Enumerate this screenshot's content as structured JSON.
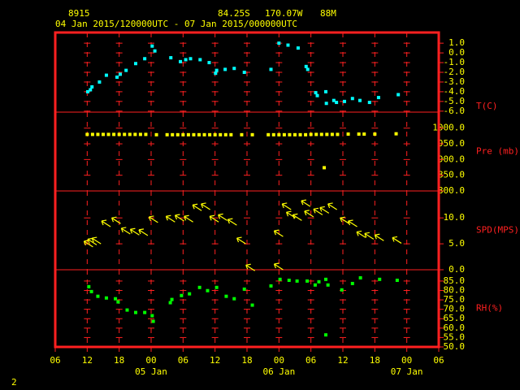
{
  "header": {
    "station": "8915",
    "lat": "84.25S",
    "lon": "170.07W",
    "elev": "88M",
    "period": "04 Jan 2015/120000UTC - 07 Jan 2015/000000UTC",
    "page": "2"
  },
  "chart_data": [
    {
      "type": "scatter",
      "label": "T(C)",
      "color": "#00ffff",
      "x": [
        6.1,
        6.6,
        6.9,
        8.3,
        9.6,
        11.6,
        12.2,
        13.3,
        15.1,
        16.8,
        18.2,
        18.7,
        21.7,
        23.5,
        24.5,
        25.4,
        27.2,
        28.9,
        30.1,
        30.3,
        31.9,
        33.6,
        35.5,
        40.5,
        42.0,
        43.7,
        45.6,
        47.1,
        47.4,
        48.9,
        49.2,
        50.8,
        50.9,
        52.3,
        52.8,
        54.3,
        55.8,
        57.2,
        59.0,
        60.7,
        64.4
      ],
      "values": [
        -4.0,
        -3.8,
        -3.5,
        -3.0,
        -2.3,
        -2.5,
        -2.2,
        -1.8,
        -1.1,
        -0.6,
        0.7,
        0.2,
        -0.5,
        -0.9,
        -0.7,
        -0.6,
        -0.7,
        -1.0,
        -2.1,
        -1.8,
        -1.7,
        -1.6,
        -2.0,
        -1.7,
        1.0,
        0.8,
        0.5,
        -1.4,
        -1.7,
        -4.1,
        -4.4,
        -4.0,
        -5.2,
        -4.9,
        -5.1,
        -5.0,
        -4.7,
        -4.9,
        -5.1,
        -4.6,
        -4.3
      ],
      "ylim": [
        -6.1,
        2.1
      ],
      "yticks": [
        {
          "value": 1,
          "label": "1.0"
        },
        {
          "value": 0,
          "label": "0.0"
        },
        {
          "value": -1,
          "label": "-1.0"
        },
        {
          "value": -2,
          "label": "-2.0"
        },
        {
          "value": -3,
          "label": "-3.0"
        },
        {
          "value": -4,
          "label": "-4.0"
        },
        {
          "value": -5,
          "label": "-5.0"
        },
        {
          "value": -6,
          "label": "-6.0"
        }
      ]
    },
    {
      "type": "scatter",
      "label": "Pre (mb)",
      "color": "#ffff00",
      "x": [
        6,
        7,
        8,
        9,
        10,
        11,
        12,
        13,
        14,
        15,
        16,
        17,
        19,
        21,
        22,
        23,
        24,
        25,
        26,
        27,
        28,
        29,
        30,
        31,
        32,
        33,
        35,
        37,
        40,
        41,
        42,
        43,
        44,
        45,
        46,
        47,
        48,
        49,
        50,
        50.5,
        51,
        52,
        53,
        55,
        57,
        58,
        60,
        64
      ],
      "values": [
        980,
        980,
        980,
        980,
        980,
        980,
        980,
        980,
        980,
        980,
        980,
        980,
        979,
        979,
        979,
        979,
        979,
        979,
        979,
        979,
        979,
        979,
        979,
        979,
        979,
        979,
        979,
        979,
        979,
        979,
        979,
        979,
        979,
        979,
        979,
        979,
        980,
        980,
        980,
        874,
        980,
        980,
        980,
        981,
        981,
        981,
        981,
        982
      ],
      "ylim": [
        800,
        1051
      ],
      "yticks": [
        {
          "value": 1000,
          "label": "1000.0"
        },
        {
          "value": 950,
          "label": "950.0"
        },
        {
          "value": 900,
          "label": "900.0"
        },
        {
          "value": 850,
          "label": "850.0"
        },
        {
          "value": 800,
          "label": "800.0"
        }
      ]
    },
    {
      "type": "wind",
      "label": "SPD(MPS)",
      "color": "#ffff00",
      "x": [
        5.4,
        6.1,
        6.9,
        8.7,
        10.6,
        12.4,
        14.1,
        15.7,
        17.6,
        20.8,
        22.5,
        24.2,
        25.8,
        27.4,
        29.0,
        30.6,
        32.4,
        34.1,
        35.8,
        41.1,
        41.1,
        42.6,
        43.4,
        44.6,
        46.2,
        46.8,
        48.5,
        49.7,
        51.2,
        53.5,
        55.0,
        56.6,
        58.1,
        60.0,
        63.3
      ],
      "values": [
        5.5,
        5.9,
        6.1,
        9.4,
        10.0,
        8.0,
        7.8,
        7.7,
        10.2,
        10.3,
        10.5,
        10.3,
        12.5,
        12.7,
        10.3,
        10.6,
        9.7,
        6.1,
        0.9,
        1.1,
        7.5,
        12.7,
        11.1,
        10.6,
        13.3,
        11.3,
        11.7,
        12.0,
        12.7,
        10.0,
        9.4,
        7.3,
        7.0,
        6.7,
        6.2
      ],
      "ylim": [
        0,
        15.2
      ],
      "yticks": [
        {
          "value": 10,
          "label": "10.0"
        },
        {
          "value": 5,
          "label": "5.0"
        },
        {
          "value": 0,
          "label": "0.0"
        }
      ]
    },
    {
      "type": "scatter",
      "label": "RH(%)",
      "color": "#00ff00",
      "x": [
        6.3,
        6.8,
        8.0,
        9.6,
        11.3,
        11.8,
        13.5,
        15.1,
        16.8,
        18.2,
        18.4,
        21.6,
        21.9,
        23.7,
        25.2,
        27.1,
        28.6,
        30.3,
        32.1,
        33.6,
        35.5,
        37.0,
        40.5,
        42.2,
        43.9,
        45.4,
        47.3,
        48.8,
        49.5,
        50.8,
        50.8,
        51.2,
        53.8,
        55.8,
        57.3,
        60.9,
        64.2
      ],
      "values": [
        82.0,
        79.4,
        76.9,
        76.0,
        75.6,
        73.9,
        69.6,
        68.3,
        68.3,
        66.6,
        63.6,
        73.5,
        75.2,
        77.3,
        78.2,
        81.6,
        79.9,
        81.6,
        76.9,
        75.6,
        80.7,
        72.2,
        82.4,
        85.9,
        85.4,
        85.0,
        85.0,
        82.9,
        84.6,
        85.9,
        56.4,
        82.9,
        80.3,
        83.7,
        86.7,
        85.9,
        85.4
      ],
      "ylim": [
        50,
        91
      ],
      "yticks": [
        {
          "value": 85,
          "label": "85.0"
        },
        {
          "value": 80,
          "label": "80.0"
        },
        {
          "value": 75,
          "label": "75.0"
        },
        {
          "value": 70,
          "label": "70.0"
        },
        {
          "value": 65,
          "label": "65.0"
        },
        {
          "value": 60,
          "label": "60.0"
        },
        {
          "value": 55,
          "label": "55.0"
        },
        {
          "value": 50,
          "label": "50.0"
        }
      ],
      "xlim": [
        0,
        72
      ],
      "xticks": [
        {
          "value": 0,
          "label": "06"
        },
        {
          "value": 6,
          "label": "12"
        },
        {
          "value": 12,
          "label": "18"
        },
        {
          "value": 18,
          "label": "00"
        },
        {
          "value": 24,
          "label": "06"
        },
        {
          "value": 30,
          "label": "12"
        },
        {
          "value": 36,
          "label": "18"
        },
        {
          "value": 42,
          "label": "00"
        },
        {
          "value": 48,
          "label": "06"
        },
        {
          "value": 54,
          "label": "12"
        },
        {
          "value": 60,
          "label": "18"
        },
        {
          "value": 66,
          "label": "00"
        },
        {
          "value": 72,
          "label": "06"
        }
      ],
      "date_labels": [
        {
          "value": 18,
          "label": "05 Jan"
        },
        {
          "value": 42,
          "label": "06 Jan"
        },
        {
          "value": 66,
          "label": "07 Jan"
        }
      ]
    }
  ]
}
